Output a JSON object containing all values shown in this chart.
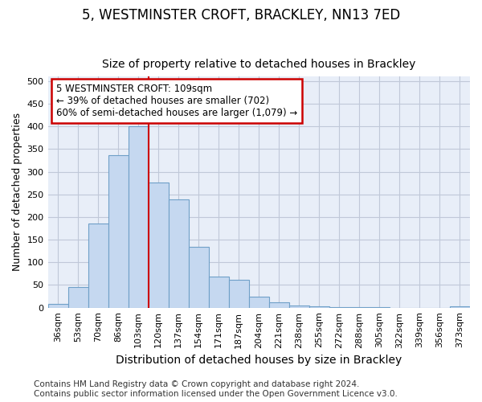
{
  "title": "5, WESTMINSTER CROFT, BRACKLEY, NN13 7ED",
  "subtitle": "Size of property relative to detached houses in Brackley",
  "xlabel": "Distribution of detached houses by size in Brackley",
  "ylabel": "Number of detached properties",
  "categories": [
    "36sqm",
    "53sqm",
    "70sqm",
    "86sqm",
    "103sqm",
    "120sqm",
    "137sqm",
    "154sqm",
    "171sqm",
    "187sqm",
    "204sqm",
    "221sqm",
    "238sqm",
    "255sqm",
    "272sqm",
    "288sqm",
    "305sqm",
    "322sqm",
    "339sqm",
    "356sqm",
    "373sqm"
  ],
  "values": [
    8,
    46,
    185,
    337,
    400,
    276,
    238,
    135,
    68,
    62,
    25,
    11,
    5,
    3,
    2,
    1,
    1,
    0,
    0,
    0,
    3
  ],
  "bar_color": "#c5d8f0",
  "bar_edge_color": "#6fa0c8",
  "vline_color": "#cc0000",
  "vline_x": 4.5,
  "annotation_text": "5 WESTMINSTER CROFT: 109sqm\n← 39% of detached houses are smaller (702)\n60% of semi-detached houses are larger (1,079) →",
  "annotation_box_facecolor": "#ffffff",
  "annotation_box_edgecolor": "#cc0000",
  "ylim": [
    0,
    510
  ],
  "yticks": [
    0,
    50,
    100,
    150,
    200,
    250,
    300,
    350,
    400,
    450,
    500
  ],
  "fig_bg_color": "#ffffff",
  "plot_bg_color": "#e8eef8",
  "grid_color": "#c0c8d8",
  "title_fontsize": 12,
  "subtitle_fontsize": 10,
  "xlabel_fontsize": 10,
  "ylabel_fontsize": 9,
  "tick_fontsize": 8,
  "annotation_fontsize": 8.5,
  "footer_fontsize": 7.5,
  "footer_text": "Contains HM Land Registry data © Crown copyright and database right 2024.\nContains public sector information licensed under the Open Government Licence v3.0."
}
